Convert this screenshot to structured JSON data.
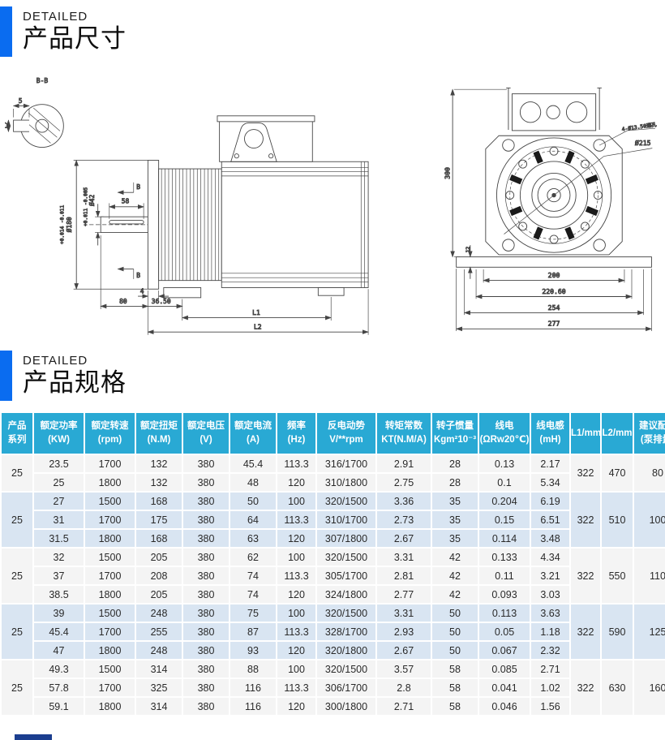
{
  "colors": {
    "accent": "#0a6cf0",
    "table_header": "#29a9d4",
    "row_base": "#f4f4f4",
    "row_alt": "#d9e5f2",
    "next_section_bar": "#1b3e8f"
  },
  "sections": {
    "dimensions": {
      "eyebrow": "DETAILED",
      "title": "产品尺寸"
    },
    "specs": {
      "eyebrow": "DETAILED",
      "title": "产品规格"
    }
  },
  "drawing": {
    "side_view": {
      "section_label": "B-B",
      "key_width": "5",
      "key_depth": "12",
      "flange_dia": "Ø180",
      "flange_tol": "+0.014 -0.011",
      "shaft_dia": "Ø42",
      "shaft_tol": "+0.011 -0.005",
      "dim_58": "58",
      "view_marker_top": "B",
      "view_marker_bottom": "B",
      "dim_4": "4",
      "dim_80": "80",
      "dim_3650": "36.50",
      "dim_l1": "L1",
      "dim_l2": "L2"
    },
    "front_view": {
      "dim_300": "300",
      "dim_12": "12",
      "holes_label": "4-Ø13.50通孔",
      "dia_215": "Ø215",
      "dim_200": "200",
      "dim_22060": "220.60",
      "dim_254": "254",
      "dim_277": "277"
    }
  },
  "table": {
    "headers": [
      [
        "产品",
        "系列"
      ],
      [
        "额定功率",
        "(KW)"
      ],
      [
        "额定转速",
        "(rpm)"
      ],
      [
        "额定扭矩",
        "(N.M)"
      ],
      [
        "额定电压",
        "(V)"
      ],
      [
        "额定电流",
        "(A)"
      ],
      [
        "频率",
        "(Hz)"
      ],
      [
        "反电动势",
        "V/**rpm"
      ],
      [
        "转矩常数",
        "KT(N.M/A)"
      ],
      [
        "转子惯量",
        "Kgm²10⁻³"
      ],
      [
        "线电",
        "(ΩRw20℃)"
      ],
      [
        "线电感",
        "(mH)"
      ],
      [
        "L1/mm",
        ""
      ],
      [
        "L2/mm",
        ""
      ],
      [
        "建议配置",
        "(泵排量)"
      ]
    ],
    "groups": [
      {
        "series": "25",
        "l1": "322",
        "l2": "470",
        "config": "80",
        "rows": [
          [
            "23.5",
            "1700",
            "132",
            "380",
            "45.4",
            "113.3",
            "316/1700",
            "2.91",
            "28",
            "0.13",
            "2.17"
          ],
          [
            "25",
            "1800",
            "132",
            "380",
            "48",
            "120",
            "310/1800",
            "2.75",
            "28",
            "0.1",
            "5.34"
          ]
        ]
      },
      {
        "series": "25",
        "l1": "322",
        "l2": "510",
        "config": "100",
        "rows": [
          [
            "27",
            "1500",
            "168",
            "380",
            "50",
            "100",
            "320/1500",
            "3.36",
            "35",
            "0.204",
            "6.19"
          ],
          [
            "31",
            "1700",
            "175",
            "380",
            "64",
            "113.3",
            "310/1700",
            "2.73",
            "35",
            "0.15",
            "6.51"
          ],
          [
            "31.5",
            "1800",
            "168",
            "380",
            "63",
            "120",
            "307/1800",
            "2.67",
            "35",
            "0.114",
            "3.48"
          ]
        ]
      },
      {
        "series": "25",
        "l1": "322",
        "l2": "550",
        "config": "110",
        "rows": [
          [
            "32",
            "1500",
            "205",
            "380",
            "62",
            "100",
            "320/1500",
            "3.31",
            "42",
            "0.133",
            "4.34"
          ],
          [
            "37",
            "1700",
            "208",
            "380",
            "74",
            "113.3",
            "305/1700",
            "2.81",
            "42",
            "0.11",
            "3.21"
          ],
          [
            "38.5",
            "1800",
            "205",
            "380",
            "74",
            "120",
            "324/1800",
            "2.77",
            "42",
            "0.093",
            "3.03"
          ]
        ]
      },
      {
        "series": "25",
        "l1": "322",
        "l2": "590",
        "config": "125",
        "rows": [
          [
            "39",
            "1500",
            "248",
            "380",
            "75",
            "100",
            "320/1500",
            "3.31",
            "50",
            "0.113",
            "3.63"
          ],
          [
            "45.4",
            "1700",
            "255",
            "380",
            "87",
            "113.3",
            "328/1700",
            "2.93",
            "50",
            "0.05",
            "1.18"
          ],
          [
            "47",
            "1800",
            "248",
            "380",
            "93",
            "120",
            "320/1800",
            "2.67",
            "50",
            "0.067",
            "2.32"
          ]
        ]
      },
      {
        "series": "25",
        "l1": "322",
        "l2": "630",
        "config": "160",
        "rows": [
          [
            "49.3",
            "1500",
            "314",
            "380",
            "88",
            "100",
            "320/1500",
            "3.57",
            "58",
            "0.085",
            "2.71"
          ],
          [
            "57.8",
            "1700",
            "325",
            "380",
            "116",
            "113.3",
            "306/1700",
            "2.8",
            "58",
            "0.041",
            "1.02"
          ],
          [
            "59.1",
            "1800",
            "314",
            "380",
            "116",
            "120",
            "300/1800",
            "2.71",
            "58",
            "0.046",
            "1.56"
          ]
        ]
      }
    ]
  }
}
